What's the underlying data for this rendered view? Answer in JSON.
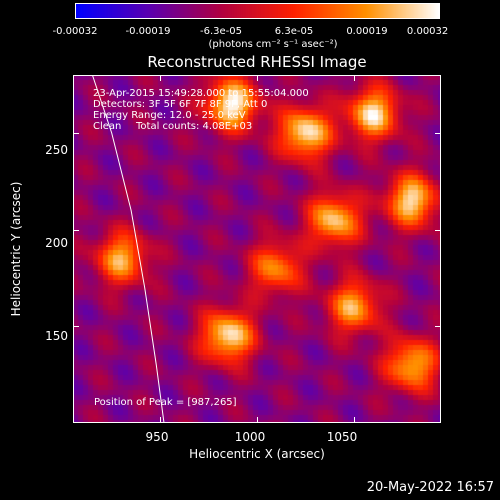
{
  "colorbar": {
    "ticks": [
      "-0.00032",
      "-0.00019",
      "-6.3e-05",
      "6.3e-05",
      "0.00019",
      "0.00032"
    ],
    "unit_label": "(photons cm⁻² s⁻¹ asec⁻²)",
    "colormap": [
      "#0000ff",
      "#5a00b0",
      "#b00040",
      "#ff2000",
      "#ff9000",
      "#ffffff"
    ]
  },
  "chart_data": {
    "type": "heatmap",
    "title": "Reconstructed RHESSI Image",
    "xlabel": "Heliocentric X (arcsec)",
    "ylabel": "Heliocentric Y (arcsec)",
    "xlim": [
      905,
      1095
    ],
    "ylim": [
      100,
      280
    ],
    "x_ticks": [
      "950",
      "1000",
      "1050"
    ],
    "y_ticks": [
      "150",
      "200",
      "250"
    ],
    "x_tick_values": [
      950,
      1000,
      1050
    ],
    "y_tick_values": [
      150,
      200,
      250
    ],
    "value_range": [
      -0.00032,
      0.00032
    ],
    "peak": [
      987,
      265
    ],
    "hot_spots": [
      {
        "x": 987,
        "y": 265,
        "value": 0.00032
      },
      {
        "x": 1025,
        "y": 250,
        "value": 0.0003
      },
      {
        "x": 1060,
        "y": 260,
        "value": 0.00028
      },
      {
        "x": 1080,
        "y": 215,
        "value": 0.00028
      },
      {
        "x": 1040,
        "y": 205,
        "value": 0.00026
      },
      {
        "x": 985,
        "y": 145,
        "value": 0.0003
      },
      {
        "x": 1050,
        "y": 160,
        "value": 0.00022
      },
      {
        "x": 1080,
        "y": 130,
        "value": 0.00024
      },
      {
        "x": 930,
        "y": 185,
        "value": 0.00022
      },
      {
        "x": 1010,
        "y": 180,
        "value": 0.00018
      }
    ],
    "annotations": [
      "23-Apr-2015 15:49:28.000 to 15:55:04.000",
      "Detectors: 3F 5F 6F 7F 8F 9F, Att 0",
      "Energy Range: 12.0 - 25.0 keV",
      "Clean",
      "Total counts: 4.08E+03"
    ],
    "peak_label": "Position of Peak = [987,265]",
    "limb_curve": [
      [
        915,
        280
      ],
      [
        925,
        250
      ],
      [
        935,
        210
      ],
      [
        942,
        170
      ],
      [
        948,
        130
      ],
      [
        952,
        100
      ]
    ]
  },
  "timestamp": "20-May-2022 16:57"
}
